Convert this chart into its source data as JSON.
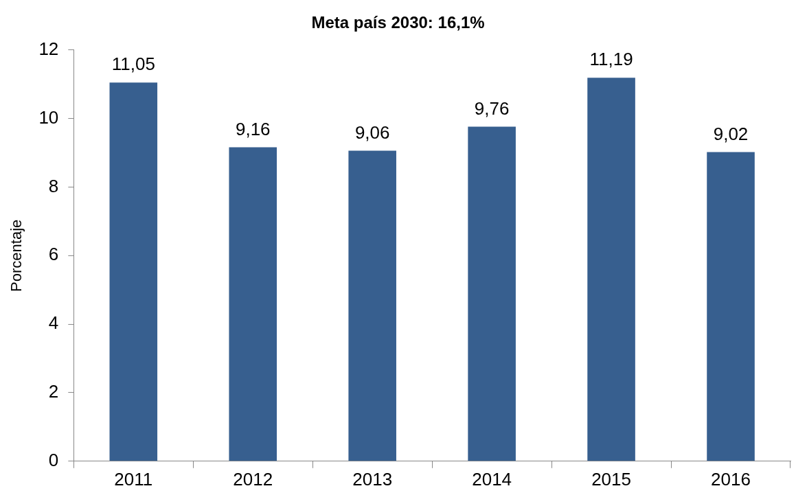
{
  "chart_data": {
    "type": "bar",
    "title": "Meta país 2030: 16,1%",
    "ylabel": "Porcentaje",
    "categories": [
      "2011",
      "2012",
      "2013",
      "2014",
      "2015",
      "2016"
    ],
    "values": [
      11.05,
      9.16,
      9.06,
      9.76,
      11.19,
      9.02
    ],
    "value_labels": [
      "11,05",
      "9,16",
      "9,06",
      "9,76",
      "11,19",
      "9,02"
    ],
    "color": "#375f8f",
    "ylim": [
      0,
      12
    ],
    "yticks": [
      0,
      2,
      4,
      6,
      8,
      10,
      12
    ],
    "grid": false
  }
}
